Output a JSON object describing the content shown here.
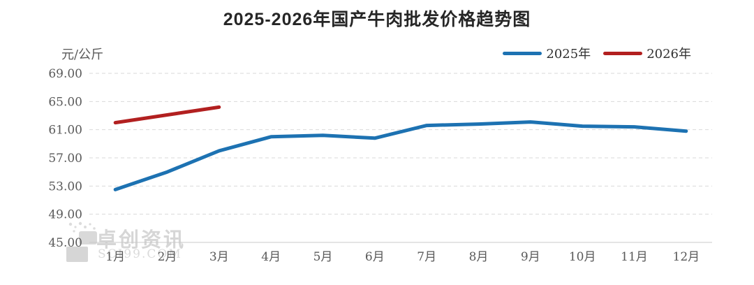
{
  "title": "2025-2026年国产牛肉批发价格趋势图",
  "unit_label": "元/公斤",
  "legend": {
    "items": [
      {
        "label": "2025年",
        "color": "#1d72b2"
      },
      {
        "label": "2026年",
        "color": "#b22020"
      }
    ]
  },
  "watermark": {
    "brand": "卓创资讯",
    "site": "SCI99.COM"
  },
  "chart_data": {
    "type": "line",
    "title": "2025-2026年国产牛肉批发价格趋势图",
    "xlabel": "",
    "ylabel": "元/公斤",
    "categories": [
      "1月",
      "2月",
      "3月",
      "4月",
      "5月",
      "6月",
      "7月",
      "8月",
      "9月",
      "10月",
      "11月",
      "12月"
    ],
    "series": [
      {
        "name": "2025年",
        "color": "#1d72b2",
        "values": [
          52.5,
          55.0,
          58.0,
          60.0,
          60.2,
          59.8,
          61.6,
          61.8,
          62.1,
          61.5,
          61.4,
          60.8
        ]
      },
      {
        "name": "2026年",
        "color": "#b22020",
        "values": [
          62.0,
          63.1,
          64.2,
          null,
          null,
          null,
          null,
          null,
          null,
          null,
          null,
          null
        ]
      }
    ],
    "ylim": [
      45,
      69
    ],
    "yticks": [
      {
        "value": 45,
        "label": "45.00"
      },
      {
        "value": 49,
        "label": "49.00"
      },
      {
        "value": 53,
        "label": "53.00"
      },
      {
        "value": 57,
        "label": "57.00"
      },
      {
        "value": 61,
        "label": "61.00"
      },
      {
        "value": 65,
        "label": "65.00"
      },
      {
        "value": 69,
        "label": "69.00"
      }
    ],
    "grid": "dashed-horizontal",
    "legend_position": "top-right",
    "colors": {
      "grid": "#dadada",
      "axis": "#c8c8c8",
      "tick_text": "#595959",
      "title_text": "#262626",
      "watermark": "#d6d6d6"
    }
  }
}
